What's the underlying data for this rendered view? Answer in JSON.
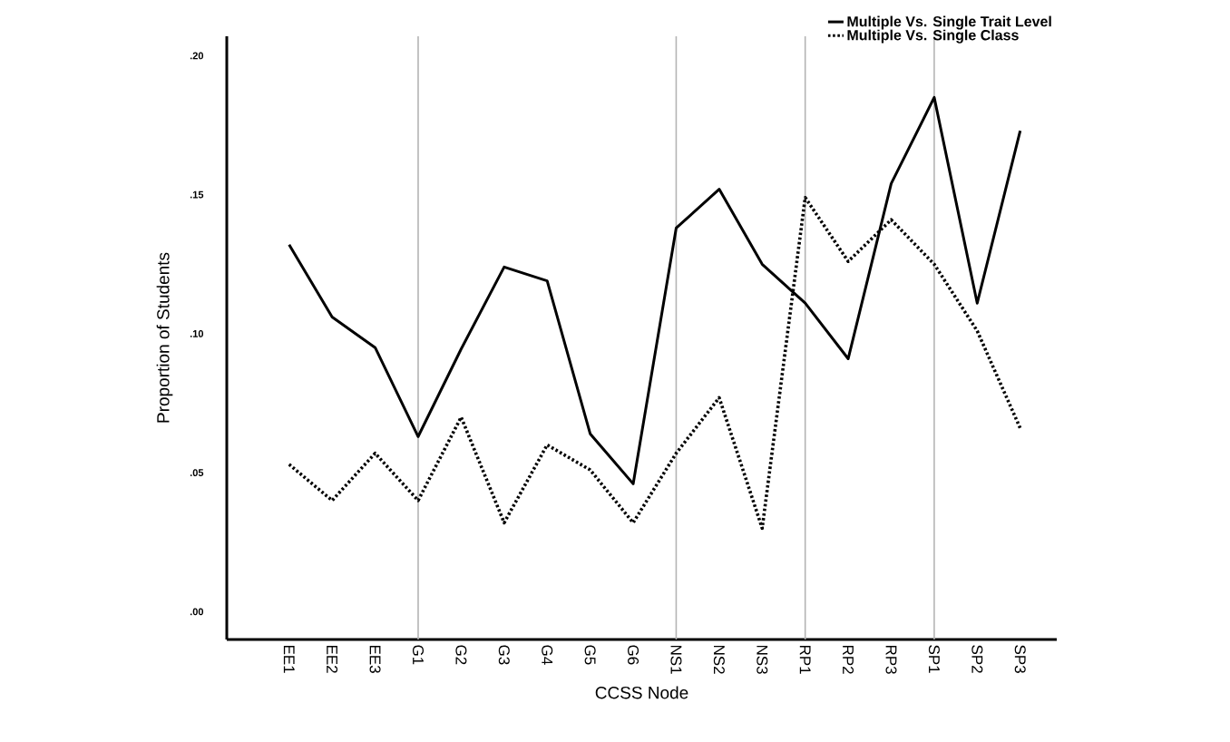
{
  "chart_data": {
    "type": "line",
    "xlabel": "CCSS Node",
    "ylabel": "Proportion of Students",
    "categories": [
      "EE1",
      "EE2",
      "EE3",
      "G1",
      "G2",
      "G3",
      "G4",
      "G5",
      "G6",
      "NS1",
      "NS2",
      "NS3",
      "RP1",
      "RP2",
      "RP3",
      "SP1",
      "SP2",
      "SP3"
    ],
    "series": [
      {
        "name": "Multiple Vs. Single Trait Level",
        "color": "#000000",
        "line_style": "solid",
        "values": [
          0.132,
          0.106,
          0.095,
          0.063,
          0.0945,
          0.124,
          0.119,
          0.064,
          0.046,
          0.138,
          0.152,
          0.125,
          0.111,
          0.091,
          0.154,
          0.185,
          0.111,
          0.173
        ]
      },
      {
        "name": "Multiple Vs. Single Class",
        "color": "#000000",
        "line_style": "dotted",
        "values": [
          0.053,
          0.04,
          0.057,
          0.04,
          0.07,
          0.032,
          0.06,
          0.051,
          0.032,
          0.057,
          0.077,
          0.03,
          0.149,
          0.126,
          0.141,
          0.125,
          0.101,
          0.066
        ]
      }
    ],
    "ylim": [
      -0.01,
      0.207
    ],
    "yticks": [
      {
        "value": 0.0,
        "label": ".00"
      },
      {
        "value": 0.05,
        "label": ".05"
      },
      {
        "value": 0.1,
        "label": ".10"
      },
      {
        "value": 0.15,
        "label": ".15"
      },
      {
        "value": 0.2,
        "label": ".20"
      }
    ],
    "ref_lines": [
      {
        "axis": "x",
        "value": "G1",
        "color": "#b4b4b4"
      },
      {
        "axis": "x",
        "value": "NS1",
        "color": "#b4b4b4"
      },
      {
        "axis": "x",
        "value": "RP1",
        "color": "#b4b4b4"
      },
      {
        "axis": "x",
        "value": "SP1",
        "color": "#b4b4b4"
      }
    ],
    "legend": "top right",
    "grid": false,
    "marker": "none"
  }
}
